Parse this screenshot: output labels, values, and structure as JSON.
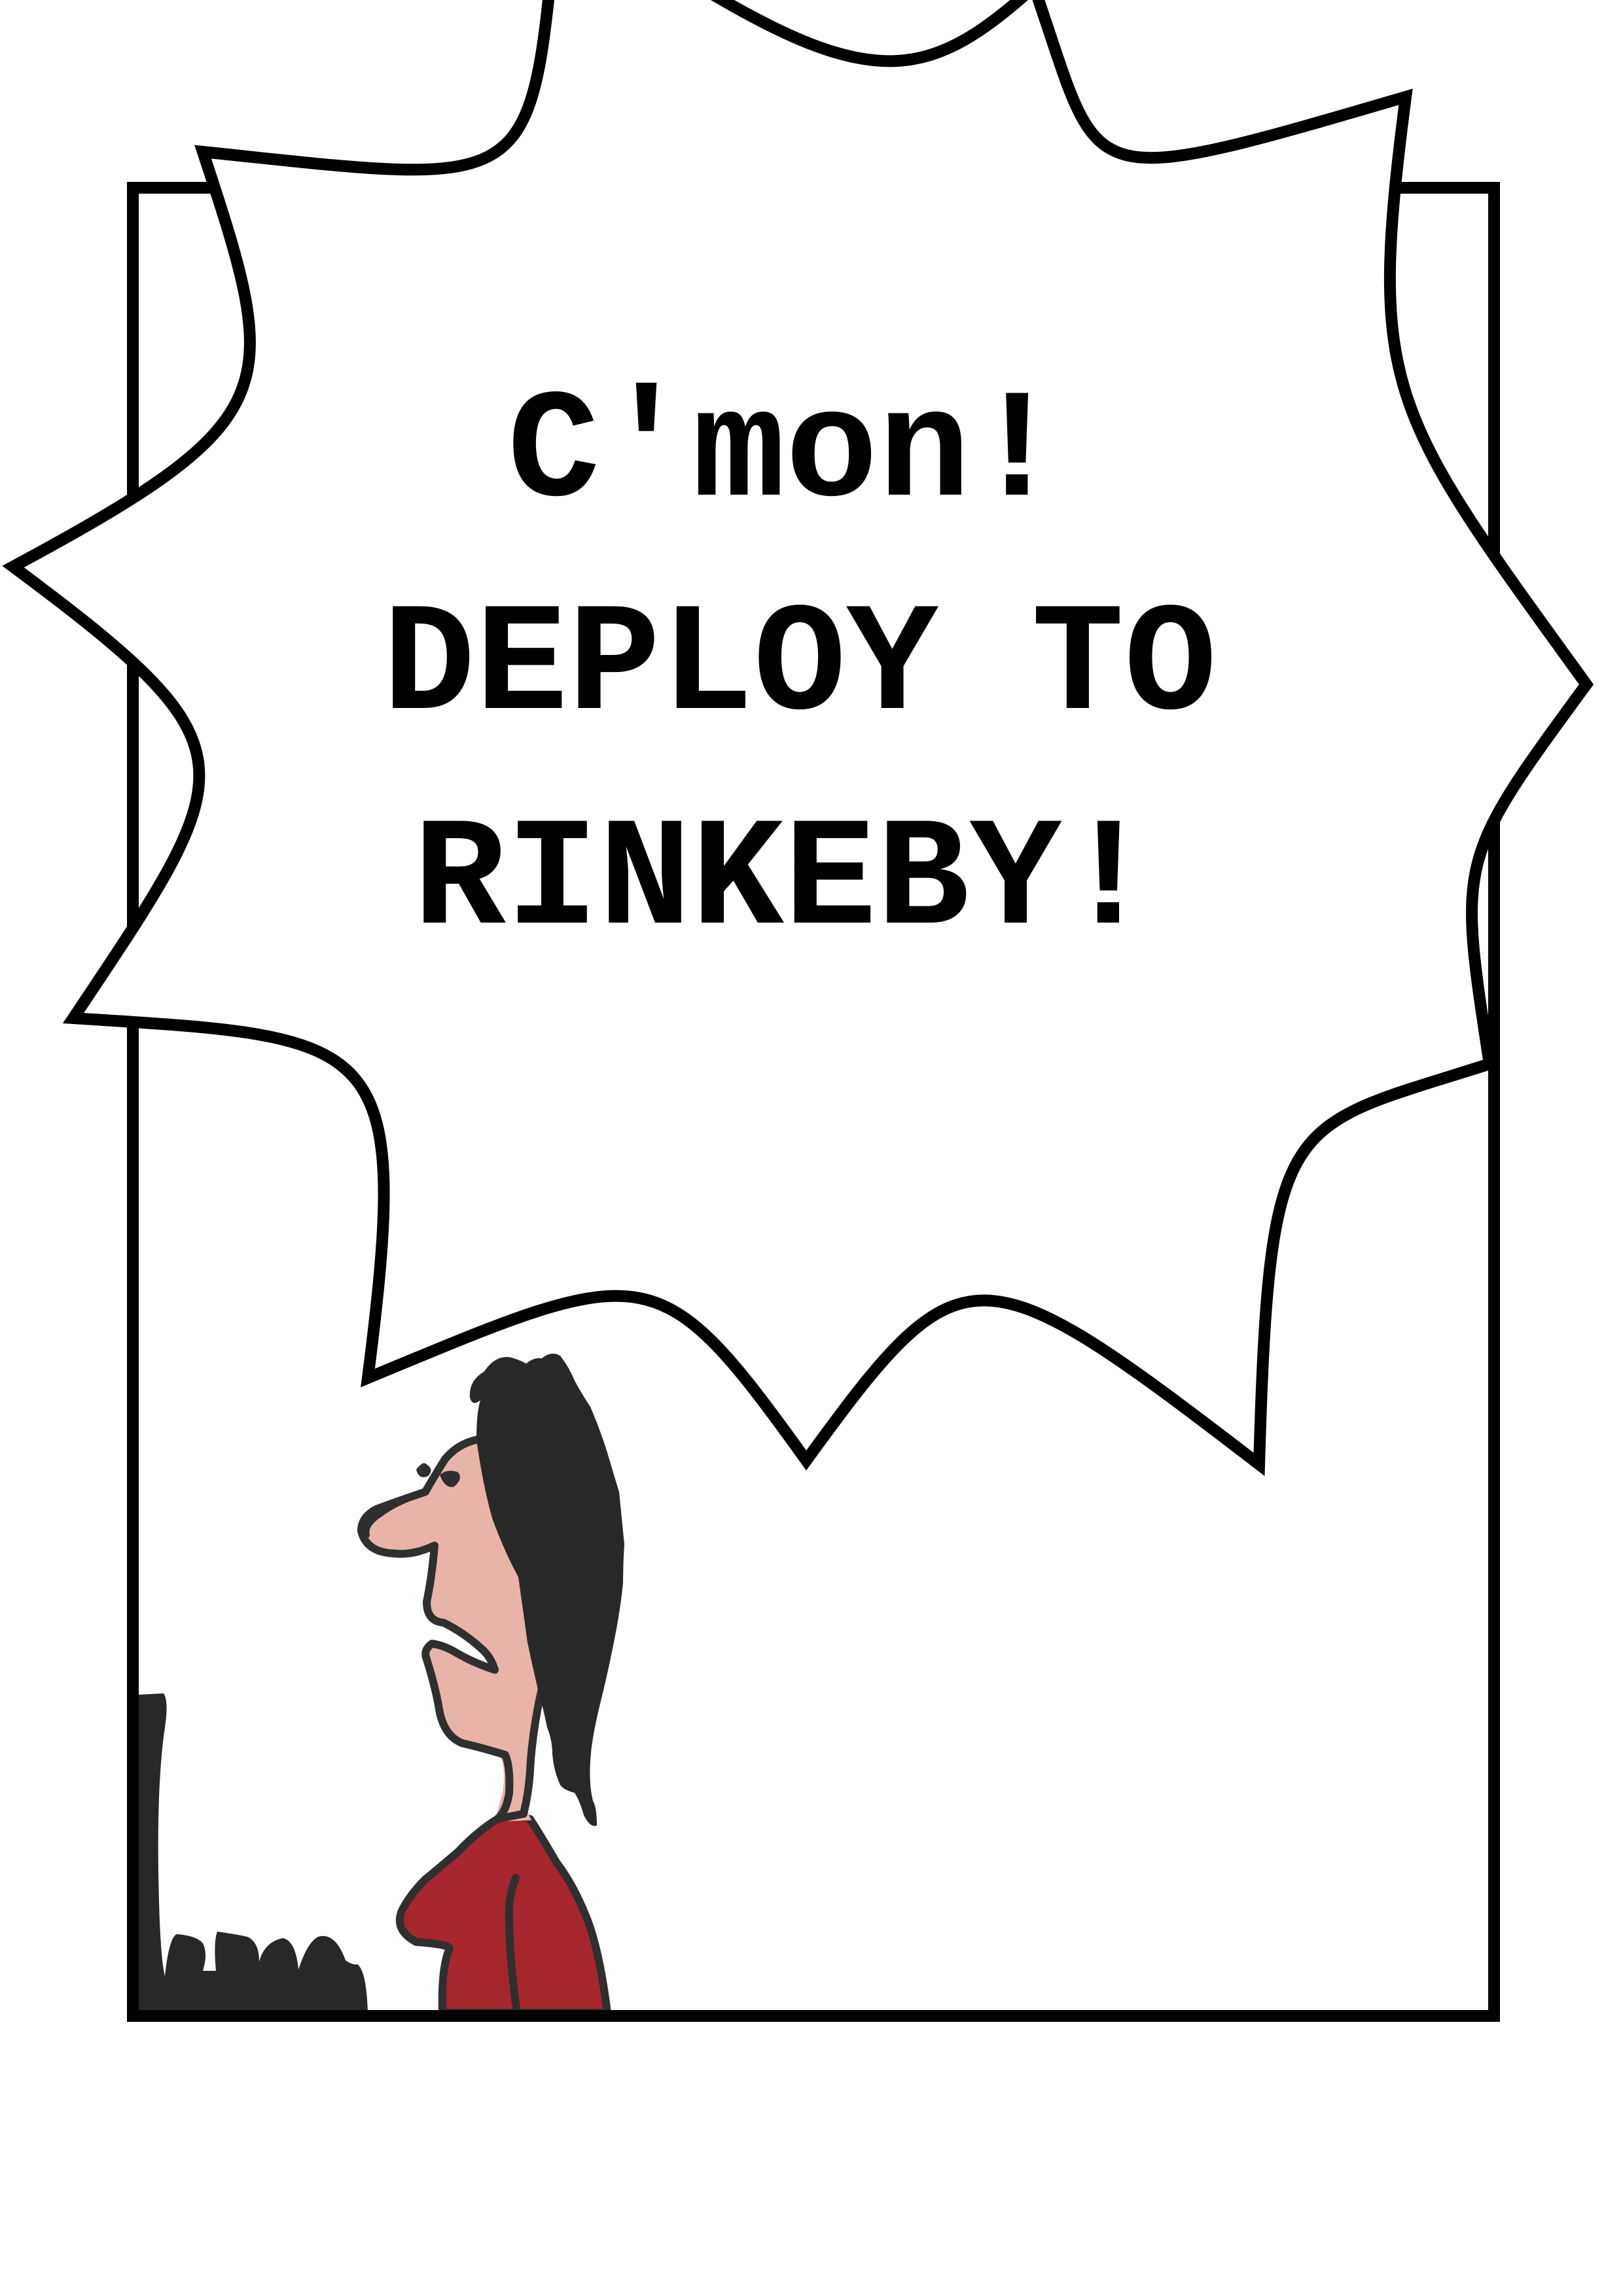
{
  "speech": {
    "lines": [
      "C'mon!",
      "DEPLOY TO",
      "RINKEBY!"
    ]
  },
  "colors": {
    "ink": "#000000",
    "background": "#ffffff",
    "hair": "#282828",
    "skin": "#e8b3a8",
    "shirt": "#a6262d",
    "outline": "#2f2f2f"
  }
}
